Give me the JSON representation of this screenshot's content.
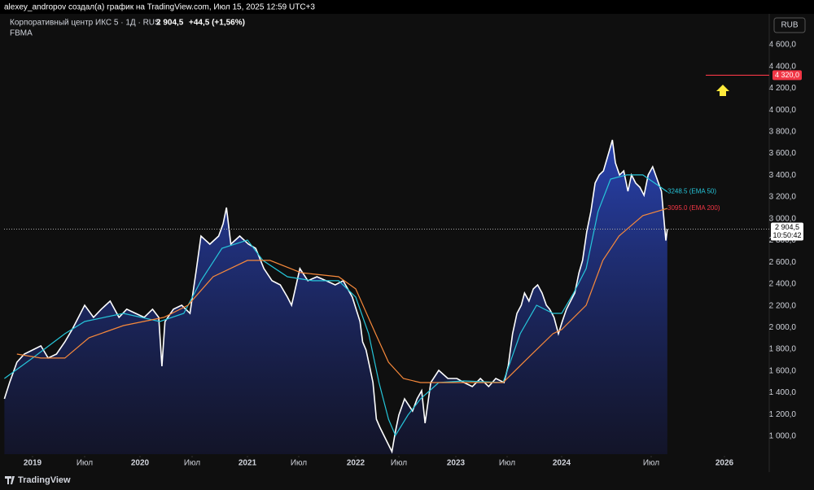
{
  "header": "alexey_andropov создал(а) график на TradingView.com, Июл 15, 2025 12:59 UTC+3",
  "currency": "RUB",
  "footer": "TradingView",
  "chart_data": {
    "type": "area",
    "title": "Корпоративный центр ИКС 5 · 1Д · RUS",
    "last_price": "2 904,5",
    "change": "+44,5 (+1,56%)",
    "subtitle": "FBMA",
    "ylim": [
      835,
      4877
    ],
    "yticks": [
      {
        "value": 1000,
        "label": "1 000,0"
      },
      {
        "value": 1200,
        "label": "1 200,0"
      },
      {
        "value": 1400,
        "label": "1 400,0"
      },
      {
        "value": 1600,
        "label": "1 600,0"
      },
      {
        "value": 1800,
        "label": "1 800,0"
      },
      {
        "value": 2000,
        "label": "2 000,0"
      },
      {
        "value": 2200,
        "label": "2 200,0"
      },
      {
        "value": 2400,
        "label": "2 400,0"
      },
      {
        "value": 2600,
        "label": "2 600,0"
      },
      {
        "value": 2800,
        "label": "2 800,0"
      },
      {
        "value": 3000,
        "label": "3 000,0"
      },
      {
        "value": 3200,
        "label": "3 200,0"
      },
      {
        "value": 3400,
        "label": "3 400,0"
      },
      {
        "value": 3600,
        "label": "3 600,0"
      },
      {
        "value": 3800,
        "label": "3 800,0"
      },
      {
        "value": 4000,
        "label": "4 000,0"
      },
      {
        "value": 4200,
        "label": "4 200,0"
      },
      {
        "value": 4400,
        "label": "4 400,0"
      },
      {
        "value": 4600,
        "label": "4 600,0"
      }
    ],
    "xticks": [
      2019,
      {
        "value": 2019.5,
        "label": "Июл"
      },
      2020,
      {
        "value": 2020.5,
        "label": "Июл"
      },
      2021,
      {
        "value": 2021.5,
        "label": "Июл"
      },
      2022,
      {
        "value": 2022.5,
        "label": "Июл"
      },
      2023,
      {
        "value": 2023.5,
        "label": "Июл"
      },
      2024,
      {
        "value": 2025.5,
        "label": "Июл"
      },
      2026
    ],
    "series": [
      {
        "color": "#ffffff",
        "fill": true,
        "x": [
          2018.73,
          2018.78,
          2018.85,
          2018.92,
          2019.0,
          2019.08,
          2019.15,
          2019.23,
          2019.31,
          2019.38,
          2019.46,
          2019.5,
          2019.58,
          2019.65,
          2019.73,
          2019.81,
          2019.88,
          2019.96,
          2020.04,
          2020.12,
          2020.18,
          2020.21,
          2020.24,
          2020.32,
          2020.4,
          2020.48,
          2020.54,
          2020.58,
          2020.66,
          2020.74,
          2020.78,
          2020.81,
          2020.85,
          2020.93,
          2021.01,
          2021.08,
          2021.16,
          2021.24,
          2021.32,
          2021.39,
          2021.43,
          2021.51,
          2021.58,
          2021.66,
          2021.74,
          2021.82,
          2021.89,
          2021.97,
          2022.05,
          2022.08,
          2022.12,
          2022.16,
          2022.2,
          2022.24,
          2022.28,
          2022.35,
          2022.42,
          2022.46,
          2022.5,
          2022.55,
          2022.62,
          2022.66,
          2022.7,
          2022.73,
          2022.78,
          2022.85,
          2022.93,
          2023.01,
          2023.08,
          2023.16,
          2023.24,
          2023.32,
          2023.39,
          2023.47,
          2023.51,
          2023.55,
          2023.59,
          2023.63,
          2023.66,
          2023.7,
          2023.74,
          2023.78,
          2023.82,
          2023.86,
          2023.89,
          2023.93,
          2023.97,
          2024.01,
          2024.08,
          2024.15,
          2024.22,
          2024.29,
          2024.35,
          2024.42,
          2024.49,
          2024.56,
          2024.63,
          2024.7,
          2024.76,
          2024.82,
          2024.85,
          2024.9,
          2024.97,
          2025.04,
          2025.11,
          2025.17,
          2025.24,
          2025.31,
          2025.38,
          2025.45,
          2025.51,
          2025.57,
          2025.6,
          2025.61
        ],
        "values": [
          1344,
          1494,
          1681,
          1756,
          1793,
          1831,
          1719,
          1756,
          1868,
          1981,
          2130,
          2205,
          2093,
          2168,
          2243,
          2093,
          2168,
          2130,
          2093,
          2168,
          2093,
          1644,
          2055,
          2168,
          2205,
          2130,
          2542,
          2841,
          2766,
          2841,
          2954,
          3103,
          2766,
          2841,
          2766,
          2729,
          2542,
          2430,
          2392,
          2280,
          2205,
          2542,
          2430,
          2467,
          2430,
          2392,
          2430,
          2280,
          2055,
          1868,
          1793,
          1644,
          1494,
          1157,
          1082,
          970,
          858,
          1045,
          1195,
          1344,
          1232,
          1344,
          1419,
          1120,
          1494,
          1606,
          1531,
          1531,
          1494,
          1457,
          1531,
          1457,
          1531,
          1494,
          1644,
          1943,
          2130,
          2205,
          2317,
          2243,
          2355,
          2392,
          2317,
          2205,
          2168,
          2093,
          1943,
          2055,
          2168,
          2243,
          2317,
          2504,
          2617,
          2879,
          3066,
          3328,
          3403,
          3440,
          3552,
          3665,
          3725,
          3515,
          3403,
          3440,
          3253,
          3403,
          3328,
          3290,
          3216,
          3403,
          3478,
          3253,
          2800,
          2904.5
        ],
        "last_time": "10:50:42"
      },
      {
        "color": "#26c6da",
        "label": "3248.5 (EMA 50)",
        "x": [
          2018.73,
          2019.0,
          2019.31,
          2019.5,
          2019.85,
          2020.19,
          2020.42,
          2020.58,
          2020.77,
          2021.0,
          2021.15,
          2021.39,
          2021.62,
          2021.85,
          2022.0,
          2022.15,
          2022.27,
          2022.38,
          2022.46,
          2022.58,
          2022.69,
          2022.85,
          2023.08,
          2023.46,
          2023.62,
          2023.77,
          2023.92,
          2024.0,
          2024.2,
          2024.41,
          2024.61,
          2024.82,
          2025.09,
          2025.36,
          2025.61
        ],
        "values": [
          1531,
          1719,
          1943,
          2055,
          2130,
          2055,
          2130,
          2430,
          2729,
          2804,
          2617,
          2467,
          2430,
          2430,
          2280,
          1943,
          1494,
          1157,
          1007,
          1195,
          1344,
          1494,
          1509,
          1494,
          1943,
          2205,
          2130,
          2130,
          2317,
          2542,
          3066,
          3365,
          3403,
          3403,
          3248.5
        ]
      },
      {
        "color": "#f7893b",
        "label": "3095.0 (EMA 200)",
        "label_color": "#f23645",
        "x": [
          2018.85,
          2019.08,
          2019.31,
          2019.54,
          2019.85,
          2020.23,
          2020.46,
          2020.69,
          2021.0,
          2021.22,
          2021.52,
          2021.85,
          2022.0,
          2022.23,
          2022.38,
          2022.54,
          2022.69,
          2023.0,
          2023.46,
          2023.69,
          2023.92,
          2024.0,
          2024.41,
          2024.69,
          2024.96,
          2025.36,
          2025.61
        ],
        "values": [
          1756,
          1719,
          1719,
          1906,
          2018,
          2093,
          2205,
          2467,
          2617,
          2617,
          2504,
          2467,
          2355,
          1943,
          1681,
          1531,
          1494,
          1494,
          1494,
          1719,
          1943,
          1981,
          2205,
          2617,
          2841,
          3029,
          3095
        ]
      }
    ],
    "price_level": {
      "value": 4320,
      "label": "4 320,0",
      "color": "#f23645"
    }
  }
}
